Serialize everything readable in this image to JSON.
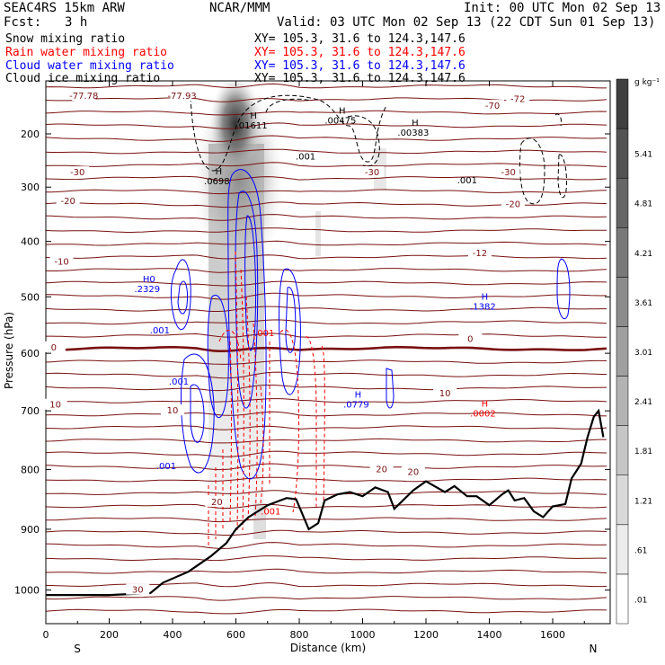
{
  "header": {
    "model": "SEAC4RS 15km ARW",
    "org": "NCAR/MMM",
    "init": "Init: 00 UTC Mon 02 Sep 13",
    "fcst_label": "Fcst:",
    "fcst_value": "3 h",
    "valid": "Valid: 03 UTC Mon 02 Sep 13 (22 CDT Sun 01 Sep 13)",
    "fields": [
      {
        "label": "Snow mixing ratio",
        "xy": "XY= 105.3, 31.6 to 124.3,147.6",
        "color": "#000000"
      },
      {
        "label": "Rain water mixing ratio",
        "xy": "XY= 105.3, 31.6 to 124.3,147.6",
        "color": "#ff0000"
      },
      {
        "label": "Cloud water mixing ratio",
        "xy": "XY= 105.3, 31.6 to 124.3,147.6",
        "color": "#0000ff"
      },
      {
        "label": "Cloud ice mixing ratio",
        "xy": "XY= 105.3, 31.6 to 124.3,147.6",
        "color": "#000000"
      }
    ]
  },
  "chart_data": {
    "type": "heatmap",
    "xlabel": "Distance (km)",
    "ylabel": "Pressure (hPa)",
    "xlim": [
      0,
      1760
    ],
    "ylim": [
      1050,
      100
    ],
    "x_ticks": [
      0,
      200,
      400,
      600,
      800,
      1000,
      1200,
      1400,
      1600
    ],
    "y_ticks": [
      200,
      300,
      400,
      500,
      600,
      700,
      800,
      900,
      1000
    ],
    "x_end_labels": {
      "left": "S",
      "right": "N"
    },
    "colorbar": {
      "unit": "g kg⁻¹",
      "levels": [
        0.01,
        0.61,
        1.21,
        1.81,
        2.41,
        3.01,
        3.61,
        4.21,
        4.81,
        5.41
      ]
    },
    "shaded_field": "Cloud ice mixing ratio",
    "temperature_contour_labels": [
      {
        "text": "-77.78",
        "x": 120,
        "p": 128
      },
      {
        "text": "-77.93",
        "x": 430,
        "p": 128
      },
      {
        "text": "-70",
        "x": 1410,
        "p": 147
      },
      {
        "text": "-72",
        "x": 1490,
        "p": 134
      },
      {
        "text": "-30",
        "x": 100,
        "p": 273
      },
      {
        "text": "-30",
        "x": 1030,
        "p": 273
      },
      {
        "text": "-30",
        "x": 1460,
        "p": 273
      },
      {
        "text": "-20",
        "x": 70,
        "p": 326
      },
      {
        "text": "-20",
        "x": 1475,
        "p": 332
      },
      {
        "text": "-10",
        "x": 50,
        "p": 437
      },
      {
        "text": "-12",
        "x": 1370,
        "p": 422
      },
      {
        "text": "0",
        "x": 25,
        "p": 590
      },
      {
        "text": "0",
        "x": 1340,
        "p": 575
      },
      {
        "text": "10",
        "x": 30,
        "p": 690
      },
      {
        "text": "10",
        "x": 1260,
        "p": 670
      },
      {
        "text": "10",
        "x": 400,
        "p": 700
      },
      {
        "text": "20",
        "x": 540,
        "p": 855
      },
      {
        "text": "20",
        "x": 1060,
        "p": 800
      },
      {
        "text": "20",
        "x": 1160,
        "p": 805
      },
      {
        "text": "30",
        "x": 290,
        "p": 1000
      }
    ],
    "extrema_labels": [
      {
        "mark": "H",
        "text": ".01611",
        "x": 650,
        "p": 185,
        "color": "#000000"
      },
      {
        "mark": "H",
        "text": ".00475",
        "x": 930,
        "p": 175,
        "color": "#000000"
      },
      {
        "mark": "H",
        "text": ".00383",
        "x": 1160,
        "p": 198,
        "color": "#000000"
      },
      {
        "mark": "",
        "text": ".001",
        "x": 820,
        "p": 243,
        "color": "#000000"
      },
      {
        "mark": "",
        "text": ".001",
        "x": 1330,
        "p": 288,
        "color": "#000000"
      },
      {
        "mark": "H",
        "text": ".0698",
        "x": 540,
        "p": 290,
        "color": "#000000"
      },
      {
        "mark": "H0",
        "text": ".2329",
        "x": 320,
        "p": 487,
        "color": "#0000ff"
      },
      {
        "mark": "",
        "text": ".001",
        "x": 360,
        "p": 560,
        "color": "#0000ff"
      },
      {
        "mark": "",
        "text": ".001",
        "x": 690,
        "p": 565,
        "color": "#ff0000"
      },
      {
        "mark": "",
        "text": ".001",
        "x": 420,
        "p": 650,
        "color": "#0000ff"
      },
      {
        "mark": "",
        "text": ".001",
        "x": 380,
        "p": 795,
        "color": "#0000ff"
      },
      {
        "mark": "H",
        "text": ".0779",
        "x": 980,
        "p": 690,
        "color": "#0000ff"
      },
      {
        "mark": "H",
        "text": ".1382",
        "x": 1380,
        "p": 518,
        "color": "#0000ff"
      },
      {
        "mark": "H",
        "text": ".0002",
        "x": 1380,
        "p": 705,
        "color": "#ff0000"
      },
      {
        "mark": "",
        "text": ".001",
        "x": 710,
        "p": 871,
        "color": "#ff0000"
      }
    ]
  }
}
